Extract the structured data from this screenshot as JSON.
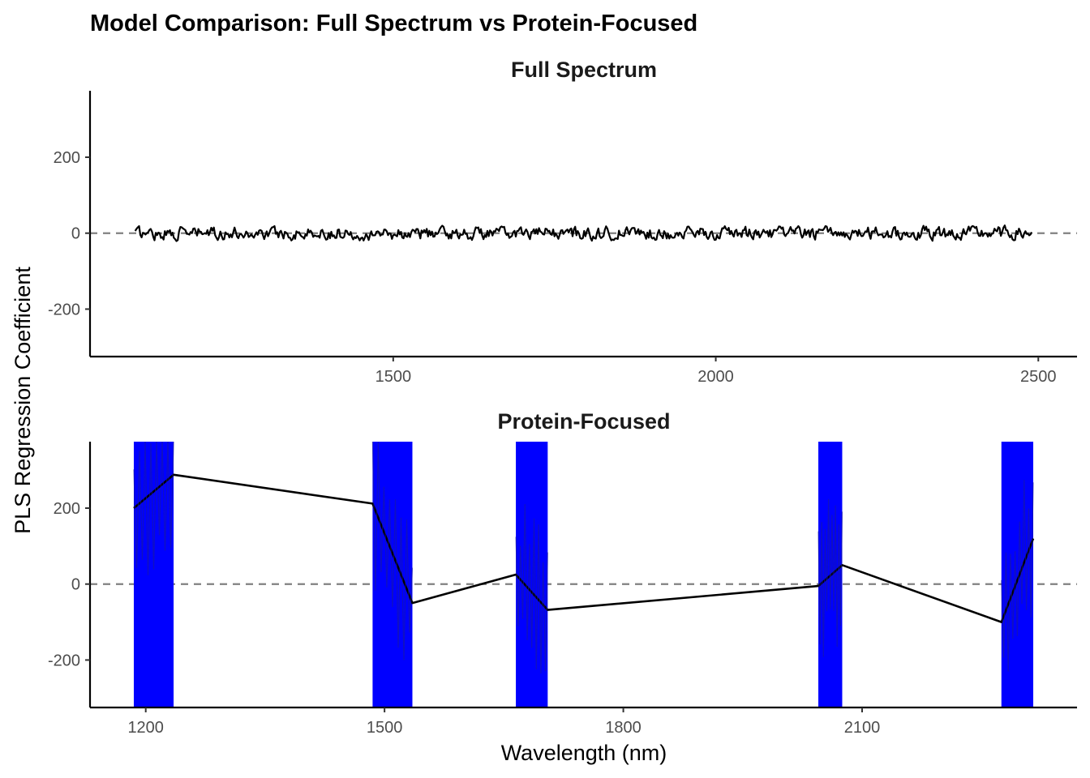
{
  "title": "Model Comparison: Full Spectrum vs Protein-Focused",
  "ylabel": "PLS Regression Coefficient",
  "xlabel": "Wavelength (nm)",
  "colors": {
    "line": "#000000",
    "band": "#0000ff",
    "zero_line": "#808080"
  },
  "chart_data": [
    {
      "type": "line",
      "panel": "Full Spectrum",
      "xlabel": "Wavelength (nm)",
      "ylabel": "PLS Regression Coefficient",
      "xlim": [
        1030,
        2560
      ],
      "ylim": [
        -325,
        375
      ],
      "xticks": [
        1500,
        2000,
        2500
      ],
      "yticks": [
        -200,
        0,
        200
      ],
      "x_range": [
        1100,
        2490
      ],
      "x_step": 2,
      "noise_amplitude": 9,
      "zero_reference_line": 0,
      "grid": false,
      "notes": "dense noisy coefficient trace around zero across the full spectrum"
    },
    {
      "type": "line",
      "panel": "Protein-Focused",
      "xlabel": "Wavelength (nm)",
      "ylabel": "PLS Regression Coefficient",
      "xlim": [
        1130,
        2370
      ],
      "ylim": [
        -325,
        375
      ],
      "xticks": [
        1200,
        1500,
        1800,
        2100
      ],
      "yticks": [
        -200,
        0,
        200
      ],
      "zero_reference_line": 0,
      "grid": false,
      "regions": [
        {
          "x_start": 1185,
          "x_end": 1235,
          "y_start": 200,
          "y_end": 288
        },
        {
          "x_start": 1485,
          "x_end": 1535,
          "y_start": 212,
          "y_end": -50
        },
        {
          "x_start": 1665,
          "x_end": 1705,
          "y_start": 25,
          "y_end": -68
        },
        {
          "x_start": 2045,
          "x_end": 2075,
          "y_start": -5,
          "y_end": 50
        },
        {
          "x_start": 2275,
          "x_end": 2315,
          "y_start": -100,
          "y_end": 120
        }
      ]
    }
  ]
}
